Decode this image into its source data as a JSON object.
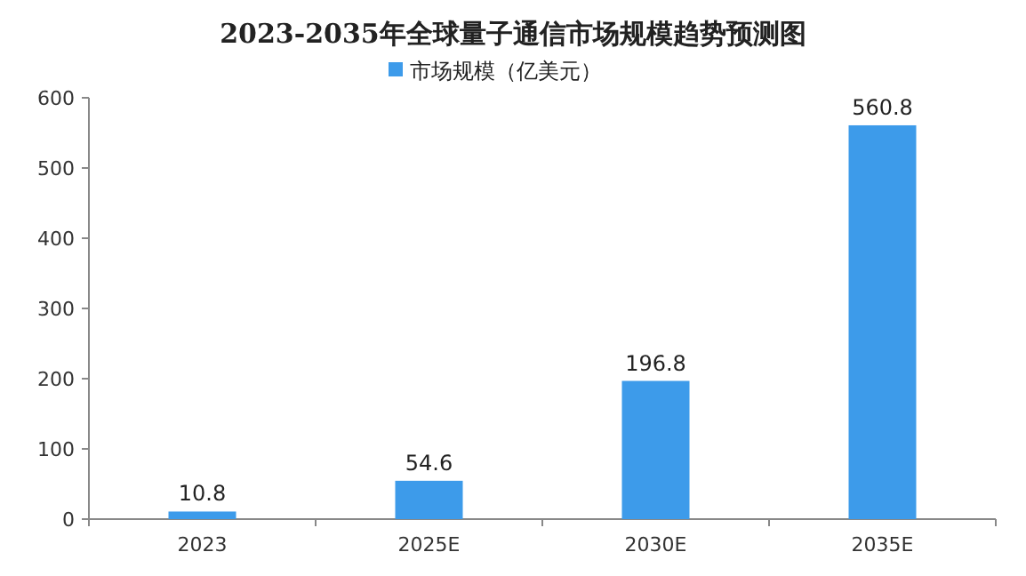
{
  "chart_data": {
    "type": "bar",
    "title": "2023-2035年全球量子通信市场规模趋势预测图",
    "categories": [
      "2023",
      "2025E",
      "2030E",
      "2035E"
    ],
    "series": [
      {
        "name": "市场规模（亿美元）",
        "color": "#3d9bea",
        "values": [
          10.8,
          54.6,
          196.8,
          560.8
        ]
      }
    ],
    "ylim": [
      0,
      600
    ],
    "yticks": [
      0,
      100,
      200,
      300,
      400,
      500,
      600
    ],
    "data_labels": true,
    "legend": "top",
    "grid": false
  }
}
